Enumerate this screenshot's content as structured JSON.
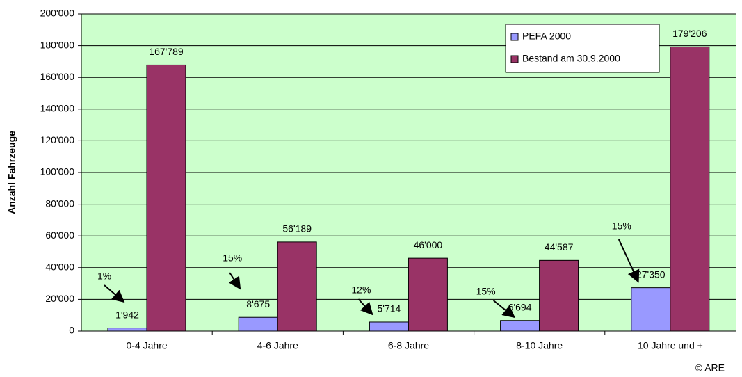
{
  "chart_data": {
    "type": "bar",
    "ylabel": "Anzahl Fahrzeuge",
    "categories": [
      "0-4 Jahre",
      "4-6 Jahre",
      "6-8 Jahre",
      "8-10 Jahre",
      "10 Jahre und +"
    ],
    "series": [
      {
        "name": "PEFA 2000",
        "color": "#9999ff",
        "values": [
          1942,
          8675,
          5714,
          6694,
          27350
        ],
        "value_labels": [
          "1'942",
          "8'675",
          "5'714",
          "6'694",
          "27'350"
        ]
      },
      {
        "name": "Bestand am 30.9.2000",
        "color": "#993366",
        "values": [
          167789,
          56189,
          46000,
          44587,
          179206
        ],
        "value_labels": [
          "167'789",
          "56'189",
          "46'000",
          "44'587",
          "179'206"
        ]
      }
    ],
    "annotations": [
      "1%",
      "15%",
      "12%",
      "15%",
      "15%"
    ],
    "ylim": [
      0,
      200000
    ],
    "yticks": [
      0,
      {
        "value": 20000,
        "label": "20'000"
      },
      {
        "value": 40000,
        "label": "40'000"
      },
      {
        "value": 60000,
        "label": "60'000"
      },
      {
        "value": 80000,
        "label": "80'000"
      },
      {
        "value": 100000,
        "label": "100'000"
      },
      {
        "value": 120000,
        "label": "120'000"
      },
      {
        "value": 140000,
        "label": "140'000"
      },
      {
        "value": 160000,
        "label": "160'000"
      },
      {
        "value": 180000,
        "label": "180'000"
      },
      {
        "value": 200000,
        "label": "200'000"
      }
    ],
    "grid": true,
    "background": "#ccffcc",
    "legend": "upper right",
    "credit": "© ARE"
  }
}
